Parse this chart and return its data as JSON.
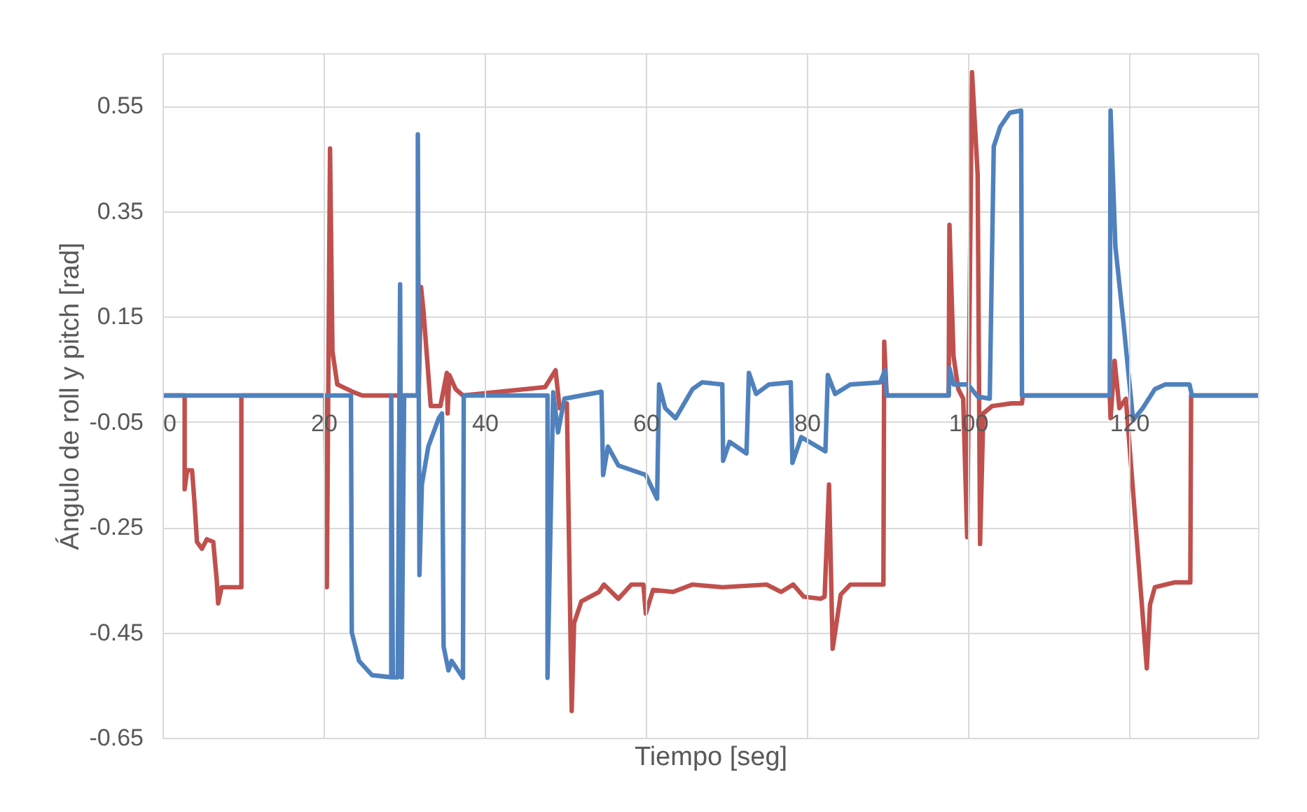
{
  "chart_data": {
    "type": "line",
    "xlabel": "Tiempo [seg]",
    "ylabel": "Ángulo de roll y pitch [rad]",
    "xlim": [
      0,
      136
    ],
    "xticks": [
      0,
      20,
      40,
      60,
      80,
      100,
      120
    ],
    "ylim": [
      -0.65,
      0.65
    ],
    "yticks": [
      0.55,
      0.35,
      0.15,
      -0.05,
      -0.25,
      -0.45,
      -0.65
    ],
    "grid": true,
    "marker": "none",
    "line_style": "solid",
    "series": [
      {
        "color": "#c0504d",
        "x": [
          0,
          2.75,
          2.75,
          3.06,
          3.67,
          3.98,
          4.28,
          4.89,
          5.5,
          6.3,
          6.73,
          6.91,
          7.34,
          9.79,
          9.79,
          20.2,
          20.4,
          20.8,
          21.1,
          21.7,
          23.6,
          24.8,
          28.4,
          31.8,
          32.1,
          32.4,
          33.3,
          34.5,
          35.3,
          35.4,
          35.6,
          36.4,
          37.3,
          47.5,
          48.8,
          49.3,
          50.2,
          50.8,
          51.1,
          52.0,
          54.2,
          54.8,
          56.6,
          58.2,
          59.7,
          60.0,
          60.9,
          63.4,
          65.8,
          69.5,
          75.0,
          76.8,
          78.3,
          79.6,
          81.7,
          82.2,
          82.75,
          83.2,
          84.2,
          85.4,
          89.5,
          89.6,
          89.9,
          97.6,
          97.7,
          98.2,
          98.8,
          99.4,
          99.9,
          100.5,
          101.2,
          101.5,
          101.9,
          103.0,
          105.4,
          106.7,
          106.8,
          117.6,
          117.7,
          118.2,
          118.8,
          119.6,
          122.2,
          122.6,
          123.2,
          125.6,
          127.6,
          127.7,
          136
        ],
        "values": [
          0,
          0,
          -0.178,
          -0.142,
          -0.142,
          -0.205,
          -0.278,
          -0.291,
          -0.273,
          -0.278,
          -0.35,
          -0.395,
          -0.364,
          -0.364,
          0,
          0,
          -0.364,
          0.469,
          0.084,
          0.021,
          0.007,
          0,
          0,
          0,
          0.206,
          0.16,
          -0.02,
          -0.02,
          0.043,
          -0.034,
          0.039,
          0.012,
          0,
          0.016,
          0.048,
          -0.024,
          -0.015,
          -0.599,
          -0.432,
          -0.391,
          -0.373,
          -0.359,
          -0.386,
          -0.359,
          -0.359,
          -0.414,
          -0.369,
          -0.373,
          -0.359,
          -0.364,
          -0.359,
          -0.373,
          -0.359,
          -0.382,
          -0.386,
          -0.382,
          -0.169,
          -0.481,
          -0.378,
          -0.359,
          -0.359,
          0.102,
          0,
          0,
          0.324,
          0.075,
          0.012,
          -0.006,
          -0.269,
          0.614,
          0.419,
          -0.282,
          -0.034,
          -0.02,
          -0.015,
          -0.015,
          0,
          0,
          -0.043,
          0.066,
          -0.024,
          -0.006,
          -0.518,
          -0.397,
          -0.364,
          -0.355,
          -0.355,
          0,
          0
        ]
      },
      {
        "color": "#4f81bd",
        "x": [
          0,
          23.4,
          23.5,
          24.4,
          26.0,
          28.4,
          28.4,
          28.6,
          29.2,
          29.5,
          29.7,
          30.0,
          31.7,
          31.7,
          31.9,
          32.2,
          33.0,
          34.3,
          34.7,
          34.9,
          35.5,
          35.9,
          37.3,
          37.4,
          47.8,
          47.8,
          48.5,
          49.1,
          49.9,
          54.5,
          54.7,
          55.3,
          56.6,
          60.0,
          61.4,
          61.65,
          62.4,
          63.7,
          65.8,
          67.0,
          69.5,
          69.6,
          70.4,
          72.5,
          72.8,
          73.7,
          75.3,
          78.0,
          78.2,
          79.3,
          82.3,
          82.6,
          83.5,
          85.4,
          89.1,
          89.7,
          89.9,
          97.6,
          97.7,
          98.2,
          100.0,
          101.2,
          102.7,
          103.2,
          104.0,
          105.2,
          106.6,
          106.7,
          117.6,
          117.7,
          118.3,
          119.3,
          120.5,
          121.7,
          123.2,
          124.5,
          127.5,
          127.8,
          136
        ],
        "values": [
          0,
          0,
          -0.45,
          -0.504,
          -0.531,
          -0.535,
          0,
          -0.535,
          -0.535,
          0.211,
          -0.535,
          0,
          0,
          0.496,
          -0.341,
          -0.169,
          -0.097,
          -0.043,
          -0.034,
          -0.477,
          -0.522,
          -0.504,
          -0.536,
          0,
          0,
          -0.536,
          0.006,
          -0.07,
          -0.006,
          0.007,
          -0.151,
          -0.097,
          -0.133,
          -0.151,
          -0.196,
          0.021,
          -0.024,
          -0.043,
          0.012,
          0.025,
          0.021,
          -0.124,
          -0.088,
          -0.11,
          0.043,
          0.003,
          0.021,
          0.025,
          -0.128,
          -0.079,
          -0.106,
          0.039,
          0.003,
          0.021,
          0.025,
          0.048,
          0,
          0,
          0.052,
          0.021,
          0.021,
          -0.002,
          -0.006,
          0.473,
          0.51,
          0.537,
          0.541,
          0,
          0,
          0.541,
          0.283,
          0.138,
          -0.047,
          -0.024,
          0.012,
          0.021,
          0.021,
          0,
          0
        ]
      }
    ]
  }
}
